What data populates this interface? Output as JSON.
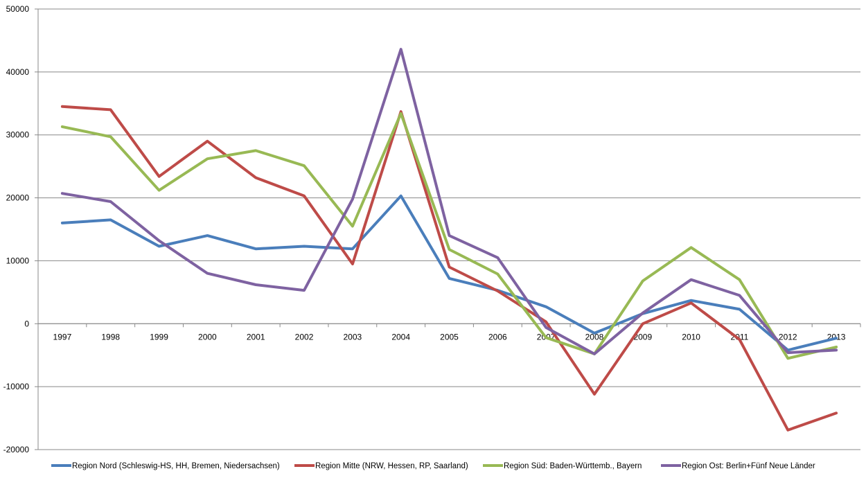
{
  "chart_data": {
    "type": "line",
    "title": "",
    "xlabel": "",
    "ylabel": "",
    "ylim": [
      -20000,
      50000
    ],
    "y_ticks": [
      -20000,
      -10000,
      0,
      10000,
      20000,
      30000,
      40000,
      50000
    ],
    "y_tick_labels": [
      "-20000",
      "-10000",
      "0",
      "10000",
      "20000",
      "30000",
      "40000",
      "50000"
    ],
    "grid": "horizontal",
    "legend_position": "bottom",
    "categories": [
      "1997",
      "1998",
      "1999",
      "2000",
      "2001",
      "2002",
      "2003",
      "2004",
      "2005",
      "2006",
      "2007",
      "2008",
      "2009",
      "2010",
      "2011",
      "2012",
      "2013"
    ],
    "series": [
      {
        "name": "Region Nord (Schleswig-HS, HH, Bremen, Niedersachsen)",
        "color": "#4a7ebb",
        "values": [
          16000,
          16500,
          12300,
          14000,
          11900,
          12300,
          11900,
          20300,
          7200,
          5300,
          2700,
          -1500,
          1600,
          3700,
          2300,
          -4200,
          -2300
        ]
      },
      {
        "name": "Region Mitte (NRW, Hessen, RP, Saarland)",
        "color": "#be4b48",
        "values": [
          34500,
          34000,
          23400,
          29000,
          23200,
          20300,
          9500,
          33700,
          9000,
          5200,
          300,
          -11200,
          0,
          3300,
          -2500,
          -16900,
          -14200
        ]
      },
      {
        "name": "Region Süd: Baden-Württemb., Bayern",
        "color": "#98b954",
        "values": [
          31300,
          29700,
          21200,
          26200,
          27500,
          25100,
          15500,
          33400,
          11800,
          7900,
          -2200,
          -4800,
          6800,
          12100,
          7000,
          -5500,
          -3700
        ]
      },
      {
        "name": "Region Ost: Berlin+Fünf Neue Länder",
        "color": "#7e62a1",
        "values": [
          20700,
          19400,
          13200,
          8000,
          6200,
          5300,
          19800,
          43600,
          14000,
          10500,
          -600,
          -4800,
          1700,
          7000,
          4500,
          -4600,
          -4200
        ]
      }
    ]
  }
}
